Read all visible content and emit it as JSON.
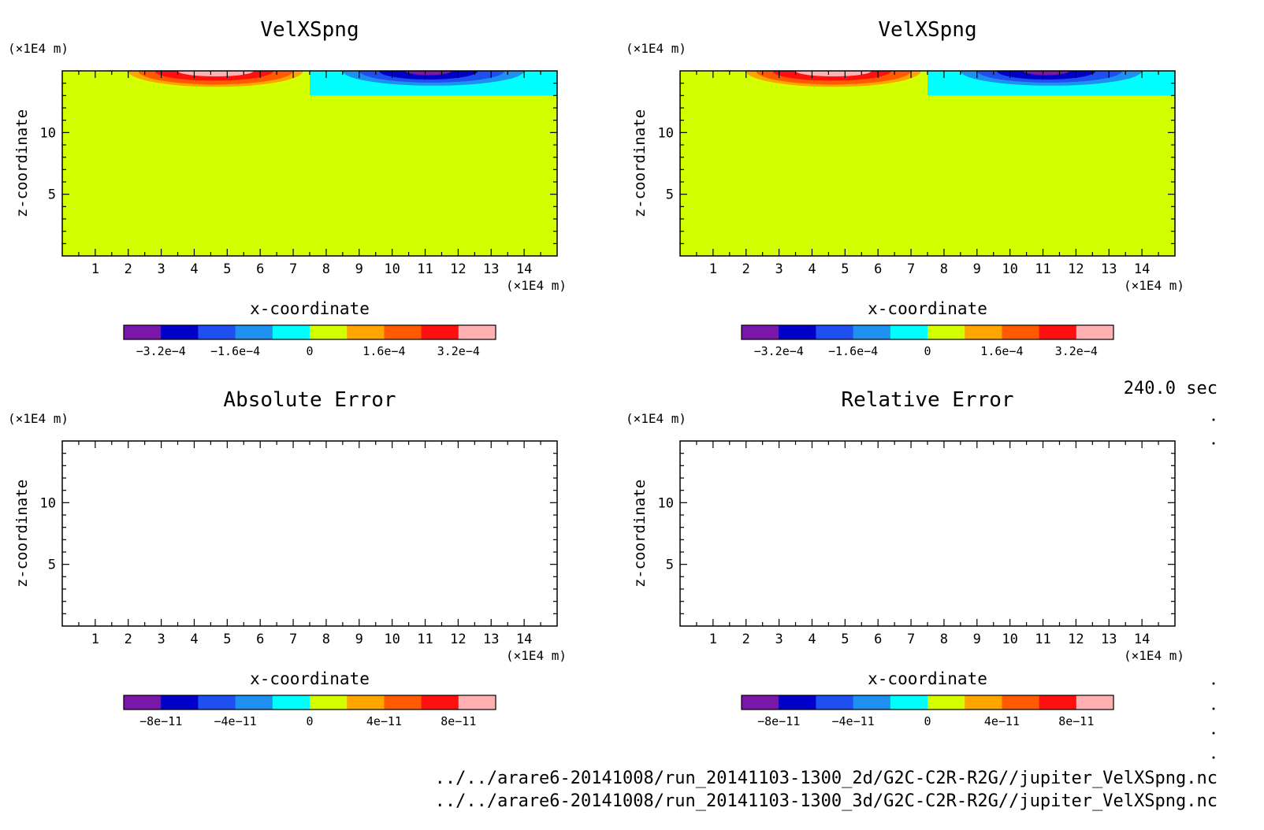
{
  "time_label": "240.0 sec",
  "paths": [
    "../../arare6-20141008/run_20141103-1300_2d/G2C-C2R-R2G//jupiter_VelXSpng.nc",
    "../../arare6-20141008/run_20141103-1300_3d/G2C-C2R-R2G//jupiter_VelXSpng.nc"
  ],
  "chart_data": [
    {
      "type": "heatmap",
      "title": "VelXSpng",
      "xlabel": "x-coordinate",
      "ylabel": "z-coordinate",
      "xunit": "(×1E4 m)",
      "yunit": "(×1E4 m)",
      "xlim": [
        0,
        15
      ],
      "ylim": [
        0,
        15
      ],
      "xticks": [
        "1",
        "2",
        "3",
        "4",
        "5",
        "6",
        "7",
        "8",
        "9",
        "10",
        "11",
        "12",
        "13",
        "14"
      ],
      "yticks": [
        "5",
        "10"
      ],
      "field": "sponge",
      "colorbar": {
        "labels": [
          "−3.2e−4",
          "−1.6e−4",
          "0",
          "1.6e−4",
          "3.2e−4"
        ],
        "colors": [
          "#7a16a8",
          "#0000c8",
          "#1e50f0",
          "#1e90f0",
          "#00ffff",
          "#d4ff00",
          "#ffa500",
          "#ff5a00",
          "#ff1010",
          "#ffb0b0"
        ]
      }
    },
    {
      "type": "heatmap",
      "title": "VelXSpng",
      "xlabel": "x-coordinate",
      "ylabel": "z-coordinate",
      "xunit": "(×1E4 m)",
      "yunit": "(×1E4 m)",
      "xlim": [
        0,
        15
      ],
      "ylim": [
        0,
        15
      ],
      "xticks": [
        "1",
        "2",
        "3",
        "4",
        "5",
        "6",
        "7",
        "8",
        "9",
        "10",
        "11",
        "12",
        "13",
        "14"
      ],
      "yticks": [
        "5",
        "10"
      ],
      "field": "sponge",
      "colorbar": {
        "labels": [
          "−3.2e−4",
          "−1.6e−4",
          "0",
          "1.6e−4",
          "3.2e−4"
        ],
        "colors": [
          "#7a16a8",
          "#0000c8",
          "#1e50f0",
          "#1e90f0",
          "#00ffff",
          "#d4ff00",
          "#ffa500",
          "#ff5a00",
          "#ff1010",
          "#ffb0b0"
        ]
      }
    },
    {
      "type": "heatmap",
      "title": "Absolute Error",
      "xlabel": "x-coordinate",
      "ylabel": "z-coordinate",
      "xunit": "(×1E4 m)",
      "yunit": "(×1E4 m)",
      "xlim": [
        0,
        15
      ],
      "ylim": [
        0,
        15
      ],
      "xticks": [
        "1",
        "2",
        "3",
        "4",
        "5",
        "6",
        "7",
        "8",
        "9",
        "10",
        "11",
        "12",
        "13",
        "14"
      ],
      "yticks": [
        "5",
        "10"
      ],
      "field": "empty",
      "colorbar": {
        "labels": [
          "−8e−11",
          "−4e−11",
          "0",
          "4e−11",
          "8e−11"
        ],
        "colors": [
          "#7a16a8",
          "#0000c8",
          "#1e50f0",
          "#1e90f0",
          "#00ffff",
          "#d4ff00",
          "#ffa500",
          "#ff5a00",
          "#ff1010",
          "#ffb0b0"
        ]
      }
    },
    {
      "type": "heatmap",
      "title": "Relative Error",
      "xlabel": "x-coordinate",
      "ylabel": "z-coordinate",
      "xunit": "(×1E4 m)",
      "yunit": "(×1E4 m)",
      "xlim": [
        0,
        15
      ],
      "ylim": [
        0,
        15
      ],
      "xticks": [
        "1",
        "2",
        "3",
        "4",
        "5",
        "6",
        "7",
        "8",
        "9",
        "10",
        "11",
        "12",
        "13",
        "14"
      ],
      "yticks": [
        "5",
        "10"
      ],
      "field": "empty",
      "colorbar": {
        "labels": [
          "−8e−11",
          "−4e−11",
          "0",
          "4e−11",
          "8e−11"
        ],
        "colors": [
          "#7a16a8",
          "#0000c8",
          "#1e50f0",
          "#1e90f0",
          "#00ffff",
          "#d4ff00",
          "#ffa500",
          "#ff5a00",
          "#ff1010",
          "#ffb0b0"
        ]
      }
    }
  ]
}
